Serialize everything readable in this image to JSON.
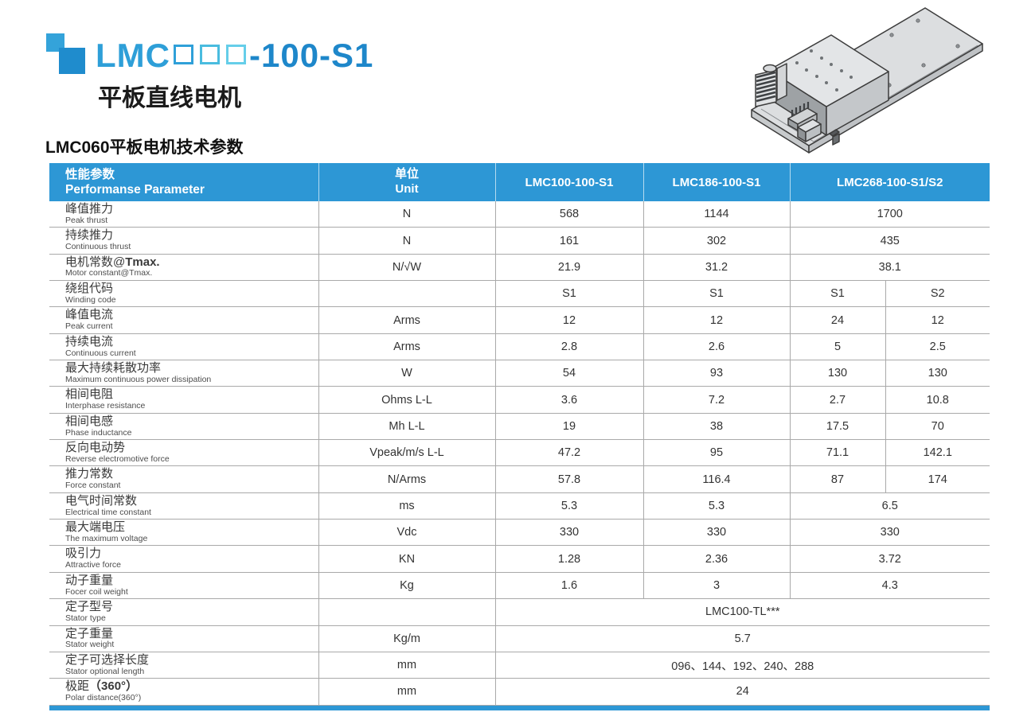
{
  "colors": {
    "accent_blue": "#2D97D5",
    "logo_square_small": "#34A3DA",
    "logo_square_big": "#1F8CCD",
    "brand_text_blue": "#2E9FD8",
    "model_suffix_blue": "#1E87CA",
    "placeholder_box_outlines": [
      "#2FA0D9",
      "#49BCDF",
      "#65CEE9"
    ]
  },
  "header": {
    "brand_prefix": "LMC",
    "model_placeholder_boxes": 3,
    "model_suffix": "-100-S1",
    "model_display": "LMC □□□-100-S1",
    "subtitle": "平板直线电机"
  },
  "section_title": "LMC060平板电机技术参数",
  "table": {
    "header": {
      "param_zh": "性能参数",
      "param_en": "Performanse Parameter",
      "unit_zh": "单位",
      "unit_en": "Unit",
      "models": [
        "LMC100-100-S1",
        "LMC186-100-S1",
        "LMC268-100-S1/S2"
      ]
    },
    "rows": [
      {
        "zh": "峰值推力",
        "zh_bold": "",
        "en": "Peak thrust",
        "unit": "N",
        "layout": "merged3",
        "values": [
          "568",
          "1144",
          "1700"
        ]
      },
      {
        "zh": "持续推力",
        "zh_bold": "",
        "en": "Continuous thrust",
        "unit": "N",
        "layout": "merged3",
        "values": [
          "161",
          "302",
          "435"
        ]
      },
      {
        "zh": "电机常数@",
        "zh_bold": "Tmax.",
        "en": "Motor constant@Tmax.",
        "unit": "N/√W",
        "layout": "merged3",
        "values": [
          "21.9",
          "31.2",
          "38.1"
        ]
      },
      {
        "zh": "绕组代码",
        "zh_bold": "",
        "en": "Winding code",
        "unit": "",
        "layout": "split",
        "values": [
          "S1",
          "S1",
          "S1",
          "S2"
        ]
      },
      {
        "zh": "峰值电流",
        "zh_bold": "",
        "en": "Peak current",
        "unit": "Arms",
        "layout": "split",
        "values": [
          "12",
          "12",
          "24",
          "12"
        ]
      },
      {
        "zh": "持续电流",
        "zh_bold": "",
        "en": "Continuous current",
        "unit": "Arms",
        "layout": "split",
        "values": [
          "2.8",
          "2.6",
          "5",
          "2.5"
        ]
      },
      {
        "zh": "最大持续耗散功率",
        "zh_bold": "",
        "en": "Maximum continuous power dissipation",
        "unit": "W",
        "layout": "split",
        "values": [
          "54",
          "93",
          "130",
          "130"
        ]
      },
      {
        "zh": "相间电阻",
        "zh_bold": "",
        "en": "Interphase resistance",
        "unit": "Ohms L-L",
        "layout": "split",
        "values": [
          "3.6",
          "7.2",
          "2.7",
          "10.8"
        ]
      },
      {
        "zh": "相间电感",
        "zh_bold": "",
        "en": "Phase inductance",
        "unit": "Mh L-L",
        "layout": "split",
        "values": [
          "19",
          "38",
          "17.5",
          "70"
        ]
      },
      {
        "zh": "反向电动势",
        "zh_bold": "",
        "en": "Reverse electromotive force",
        "unit": "Vpeak/m/s L-L",
        "layout": "split",
        "values": [
          "47.2",
          "95",
          "71.1",
          "142.1"
        ]
      },
      {
        "zh": "推力常数",
        "zh_bold": "",
        "en": "Force constant",
        "unit": "N/Arms",
        "layout": "split",
        "values": [
          "57.8",
          "116.4",
          "87",
          "174"
        ]
      },
      {
        "zh": "电气时间常数",
        "zh_bold": "",
        "en": "Electrical time constant",
        "unit": "ms",
        "layout": "merged3",
        "values": [
          "5.3",
          "5.3",
          "6.5"
        ]
      },
      {
        "zh": "最大端电压",
        "zh_bold": "",
        "en": "The maximum voltage",
        "unit": "Vdc",
        "layout": "merged3",
        "values": [
          "330",
          "330",
          "330"
        ]
      },
      {
        "zh": "吸引力",
        "zh_bold": "",
        "en": "Attractive force",
        "unit": "KN",
        "layout": "merged3",
        "values": [
          "1.28",
          "2.36",
          "3.72"
        ]
      },
      {
        "zh": "动子重量",
        "zh_bold": "",
        "en": "Focer coil weight",
        "unit": "Kg",
        "layout": "merged3",
        "values": [
          "1.6",
          "3",
          "4.3"
        ]
      },
      {
        "zh": "定子型号",
        "zh_bold": "",
        "en": "Stator type",
        "unit": "",
        "layout": "span",
        "values": [
          "LMC100-TL***"
        ]
      },
      {
        "zh": "定子重量",
        "zh_bold": "",
        "en": "Stator weight",
        "unit": "Kg/m",
        "layout": "span",
        "values": [
          "5.7"
        ]
      },
      {
        "zh": "定子可选择长度",
        "zh_bold": "",
        "en": "Stator optional length",
        "unit": "mm",
        "layout": "span",
        "values": [
          "096、144、192、240、288"
        ]
      },
      {
        "zh": "极距",
        "zh_bold": "（360°）",
        "en": "Polar distance(360°)",
        "unit": "mm",
        "layout": "span",
        "values": [
          "24"
        ]
      }
    ]
  }
}
